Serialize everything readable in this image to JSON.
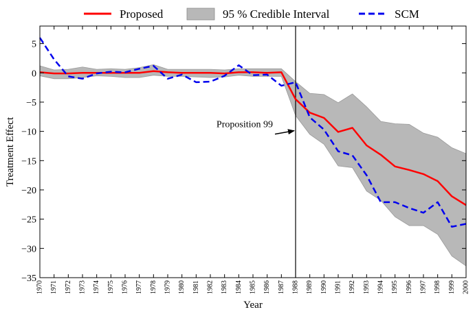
{
  "chart_data": {
    "type": "line",
    "title": "",
    "xlabel": "Year",
    "ylabel": "Treatment Effect",
    "xlim": [
      1970,
      2000
    ],
    "ylim": [
      -35,
      8
    ],
    "x": [
      1970,
      1971,
      1972,
      1973,
      1974,
      1975,
      1976,
      1977,
      1978,
      1979,
      1980,
      1981,
      1982,
      1983,
      1984,
      1985,
      1986,
      1987,
      1988,
      1989,
      1990,
      1991,
      1992,
      1993,
      1994,
      1995,
      1996,
      1997,
      1998,
      1999,
      2000
    ],
    "x_tick_labels": [
      "1970",
      "1971",
      "1972",
      "1973",
      "1974",
      "1975",
      "1976",
      "1977",
      "1978",
      "1979",
      "1980",
      "1981",
      "1982",
      "1983",
      "1984",
      "1985",
      "1986",
      "1987",
      "1988",
      "1989",
      "1990",
      "1991",
      "1992",
      "1993",
      "1994",
      "1995",
      "1996",
      "1997",
      "1998",
      "1999",
      "2000"
    ],
    "y_ticks": [
      5,
      0,
      -5,
      -10,
      -15,
      -20,
      -25,
      -30,
      -35
    ],
    "y_tick_labels": [
      "5",
      "0",
      "−5",
      "−10",
      "−15",
      "−20",
      "−25",
      "−30",
      "−35"
    ],
    "series": [
      {
        "name": "Proposed",
        "style": "solid",
        "color": "#ff0000",
        "values": [
          0.1,
          -0.1,
          -0.1,
          0.0,
          0.0,
          0.0,
          0.0,
          0.0,
          0.3,
          0.1,
          0.0,
          0.0,
          0.0,
          -0.1,
          0.1,
          0.1,
          0.0,
          0.1,
          -4.5,
          -6.8,
          -7.7,
          -10.1,
          -9.4,
          -12.4,
          -14.0,
          -16.0,
          -16.6,
          -17.3,
          -18.5,
          -21.1,
          -22.6
        ]
      },
      {
        "name": "SCM",
        "style": "dashed",
        "color": "#0000ee",
        "values": [
          6.0,
          2.3,
          -0.6,
          -1.0,
          -0.1,
          0.2,
          0.1,
          0.7,
          1.2,
          -1.0,
          -0.3,
          -1.6,
          -1.5,
          -0.5,
          1.3,
          -0.4,
          -0.3,
          -2.2,
          -1.6,
          -7.6,
          -9.7,
          -13.4,
          -14.1,
          -17.5,
          -22.1,
          -22.1,
          -23.1,
          -23.9,
          -22.1,
          -26.3,
          -25.8
        ]
      }
    ],
    "interval": {
      "name": "95 % Credible Interval",
      "color": "#b8b8b8",
      "upper": [
        1.2,
        0.5,
        0.6,
        1.0,
        0.6,
        0.7,
        0.6,
        0.9,
        1.4,
        0.6,
        0.6,
        0.6,
        0.6,
        0.5,
        0.7,
        0.7,
        0.7,
        0.7,
        -1.5,
        -3.5,
        -3.7,
        -5.1,
        -3.6,
        -5.8,
        -8.3,
        -8.7,
        -8.8,
        -10.3,
        -11.0,
        -12.8,
        -13.8
      ],
      "lower": [
        -0.5,
        -1.0,
        -1.0,
        -0.8,
        -0.5,
        -0.6,
        -0.8,
        -0.8,
        -0.4,
        -0.6,
        -0.6,
        -0.7,
        -0.8,
        -0.7,
        -0.4,
        -0.6,
        -0.6,
        -0.6,
        -7.3,
        -10.5,
        -12.2,
        -15.9,
        -16.2,
        -20.2,
        -21.8,
        -24.6,
        -26.1,
        -26.1,
        -27.6,
        -31.3,
        -33.0
      ]
    },
    "vline": {
      "x": 1988
    },
    "annotation": {
      "text": "Proposition 99",
      "arrow_to": [
        1988,
        -10
      ]
    },
    "legend": {
      "position": "top",
      "entries": [
        "Proposed",
        "95 % Credible Interval",
        "SCM"
      ]
    },
    "grid": false
  }
}
